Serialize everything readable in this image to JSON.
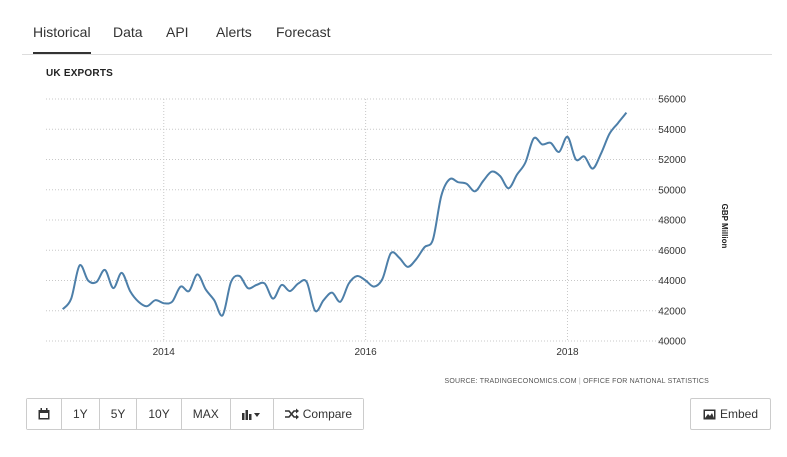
{
  "tabs": [
    {
      "label": "Historical",
      "active": true
    },
    {
      "label": "Data",
      "active": false
    },
    {
      "label": "API",
      "active": false
    },
    {
      "label": "Alerts",
      "active": false
    },
    {
      "label": "Forecast",
      "active": false
    }
  ],
  "source": {
    "prefix": "SOURCE: TRADINGECONOMICS.COM",
    "separator": "|",
    "org": "OFFICE FOR NATIONAL STATISTICS"
  },
  "toolbar": {
    "calendar_icon": "calendar-icon",
    "ranges": [
      "1Y",
      "5Y",
      "10Y",
      "MAX"
    ],
    "chart_type_icon": "bar-chart-icon",
    "compare_icon": "shuffle-icon",
    "compare_label": "Compare",
    "embed_icon": "image-icon",
    "embed_label": "Embed"
  },
  "chart_data": {
    "type": "line",
    "title": "UK EXPORTS",
    "ylabel": "GBP Million",
    "ylim": [
      40000,
      56000
    ],
    "yticks": [
      40000,
      42000,
      44000,
      46000,
      48000,
      50000,
      52000,
      54000,
      56000
    ],
    "xticks": [
      "2014",
      "2016",
      "2018"
    ],
    "xlim": [
      "2012-11",
      "2018-12"
    ],
    "grid": true,
    "line_color": "#4d7fa9",
    "series": [
      {
        "name": "",
        "x": [
          "2013-01",
          "2013-02",
          "2013-03",
          "2013-04",
          "2013-05",
          "2013-06",
          "2013-07",
          "2013-08",
          "2013-09",
          "2013-10",
          "2013-11",
          "2013-12",
          "2014-01",
          "2014-02",
          "2014-03",
          "2014-04",
          "2014-05",
          "2014-06",
          "2014-07",
          "2014-08",
          "2014-09",
          "2014-10",
          "2014-11",
          "2014-12",
          "2015-01",
          "2015-02",
          "2015-03",
          "2015-04",
          "2015-05",
          "2015-06",
          "2015-07",
          "2015-08",
          "2015-09",
          "2015-10",
          "2015-11",
          "2015-12",
          "2016-01",
          "2016-02",
          "2016-03",
          "2016-04",
          "2016-05",
          "2016-06",
          "2016-07",
          "2016-08",
          "2016-09",
          "2016-10",
          "2016-11",
          "2016-12",
          "2017-01",
          "2017-02",
          "2017-03",
          "2017-04",
          "2017-05",
          "2017-06",
          "2017-07",
          "2017-08",
          "2017-09",
          "2017-10",
          "2017-11",
          "2017-12",
          "2018-01",
          "2018-02",
          "2018-03",
          "2018-04",
          "2018-05",
          "2018-06",
          "2018-07",
          "2018-08"
        ],
        "values": [
          42100,
          42800,
          45000,
          44000,
          43900,
          44700,
          43500,
          44500,
          43300,
          42600,
          42300,
          42700,
          42500,
          42600,
          43600,
          43300,
          44400,
          43400,
          42700,
          41700,
          43900,
          44300,
          43500,
          43700,
          43800,
          42800,
          43700,
          43300,
          43800,
          43900,
          42000,
          42700,
          43200,
          42600,
          43800,
          44300,
          44000,
          43600,
          44100,
          45800,
          45500,
          44900,
          45400,
          46200,
          46700,
          49600,
          50700,
          50500,
          50400,
          49900,
          50600,
          51200,
          50900,
          50100,
          51000,
          51800,
          53400,
          53000,
          53100,
          52500,
          53500,
          52000,
          52200,
          51400,
          52400,
          53700,
          54400,
          55100
        ]
      }
    ]
  }
}
